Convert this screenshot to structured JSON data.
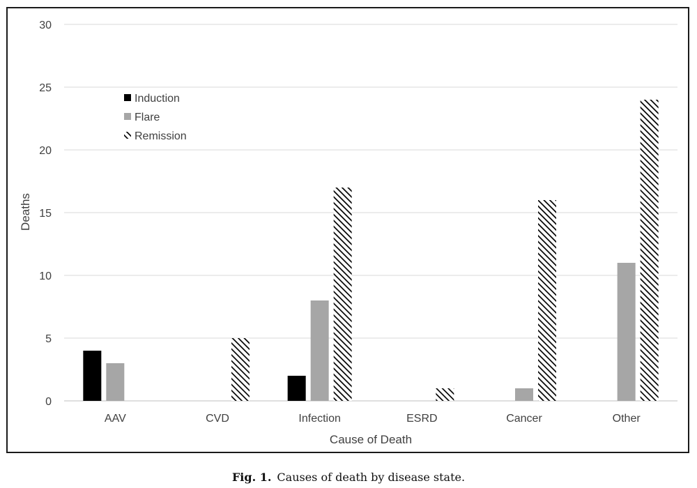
{
  "chart_data": {
    "type": "bar",
    "title": "",
    "xlabel": "Cause of Death",
    "ylabel": "Deaths",
    "categories": [
      "AAV",
      "CVD",
      "Infection",
      "ESRD",
      "Cancer",
      "Other"
    ],
    "series": [
      {
        "name": "Induction",
        "values": [
          4,
          0,
          2,
          0,
          0,
          0
        ],
        "color": "#000000",
        "pattern": "solid"
      },
      {
        "name": "Flare",
        "values": [
          3,
          0,
          8,
          0,
          1,
          11
        ],
        "color": "#a6a6a6",
        "pattern": "solid"
      },
      {
        "name": "Remission",
        "values": [
          0,
          5,
          17,
          1,
          16,
          24
        ],
        "color": "#000000",
        "pattern": "diagonal-hatch"
      }
    ],
    "ylim": [
      0,
      30
    ],
    "yticks": [
      0,
      5,
      10,
      15,
      20,
      25,
      30
    ],
    "grid": true,
    "legend_position": "top-left"
  },
  "caption": {
    "label": "Fig. 1.",
    "text": "Causes of death by disease state."
  }
}
